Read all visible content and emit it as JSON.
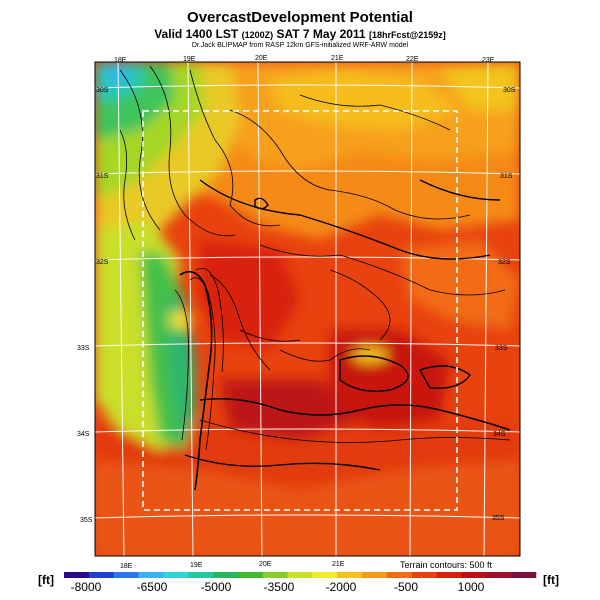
{
  "header": {
    "title": "OvercastDevelopment Potential",
    "subtitle_main": "Valid 1400 LST ",
    "subtitle_small1": "(1200Z)",
    "subtitle_date": " SAT 7 May 2011 ",
    "subtitle_small2": "[18hrFcst@2159z]",
    "credit": "Dr.Jack BLIPMAP from RASP 12km GFS-initialized WRF-ARW model"
  },
  "map": {
    "top_lon_labels": [
      "18E",
      "19E",
      "20E",
      "21E",
      "22E",
      "23E"
    ],
    "bottom_lon_labels": [
      "18E",
      "19E",
      "20E",
      "21E"
    ],
    "left_lat_labels": [
      "30S",
      "31S",
      "32S",
      "33S",
      "34S",
      "35S"
    ],
    "right_lat_labels": [
      "30S",
      "31S",
      "32S",
      "33S",
      "34S",
      "35S"
    ],
    "terrain_note": "Terrain contours: 500 ft"
  },
  "colorbar": {
    "unit_left": "[ft]",
    "unit_right": "[ft]",
    "tick_labels": [
      "-8000",
      "-6500",
      "-5000",
      "-3500",
      "-2000",
      "-500",
      "1000"
    ],
    "colors": [
      "#2a0a8c",
      "#1f3fd0",
      "#2a78f0",
      "#36b2f5",
      "#2fd6d6",
      "#22c8a0",
      "#23b85a",
      "#3dbd2b",
      "#86cf28",
      "#c9e12a",
      "#f2ea2a",
      "#f7c21e",
      "#f79a17",
      "#f26c13",
      "#e8420f",
      "#d7200c",
      "#bd1014",
      "#a0102a",
      "#801040"
    ]
  }
}
